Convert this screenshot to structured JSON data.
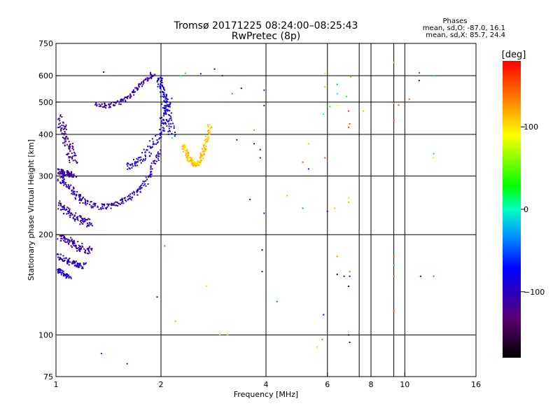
{
  "chart_data": {
    "type": "scatter",
    "title": "Tromsø 20171225 08:24:00–08:25:43",
    "subtitle": "RwPretec (8p)",
    "xlabel": "Frequency [MHz]",
    "ylabel": "Stationary phase Virtual Height [km]",
    "x_scale": "log",
    "y_scale": "log",
    "xlim": [
      1,
      16
    ],
    "ylim": [
      75,
      750
    ],
    "x_ticks": [
      1,
      2,
      4,
      6,
      8,
      10,
      16
    ],
    "x_tick_labels": [
      "1",
      "2",
      "4",
      "6",
      "8",
      "10",
      "16"
    ],
    "x_grid": [
      2,
      4,
      6,
      8,
      10
    ],
    "x_grid_extra": [
      7.4,
      9.3
    ],
    "y_ticks": [
      75,
      100,
      200,
      300,
      400,
      500,
      600,
      750
    ],
    "y_tick_labels": [
      "75",
      "100",
      "200",
      "300",
      "400",
      "500",
      "600",
      "750"
    ],
    "y_grid": [
      100,
      200,
      300,
      400,
      500,
      600
    ],
    "grid": true,
    "stats": {
      "heading": "Phases",
      "line1": "mean, sd,O: -87.0, 16.1",
      "line2": "mean, sd,X: 85.7, 24.4"
    },
    "colorbar": {
      "label": "[deg]",
      "range": [
        -180,
        180
      ],
      "ticks": [
        100,
        0,
        -100
      ],
      "tick_labels": [
        "100",
        "0",
        "−100"
      ]
    },
    "traces": [
      {
        "x": [
          1.0,
          1.05,
          1.1,
          1.15,
          1.2,
          1.3,
          1.4,
          1.5,
          1.6,
          1.7,
          1.8,
          1.9,
          1.97
        ],
        "y": [
          300,
          290,
          275,
          262,
          252,
          244,
          244,
          250,
          258,
          270,
          290,
          325,
          360
        ],
        "phase": -102,
        "spread": 4
      },
      {
        "x": [
          1.0,
          1.03,
          1.06,
          1.08,
          1.1,
          1.12
        ],
        "y": [
          460,
          430,
          400,
          375,
          350,
          330
        ],
        "phase": -118,
        "spread": 6
      },
      {
        "x": [
          1.0,
          1.03,
          1.06,
          1.09,
          1.12
        ],
        "y": [
          315,
          310,
          308,
          305,
          303
        ],
        "phase": -112,
        "spread": 4
      },
      {
        "x": [
          1.0,
          1.05,
          1.1,
          1.15,
          1.2,
          1.25
        ],
        "y": [
          250,
          240,
          232,
          225,
          220,
          217
        ],
        "phase": -108,
        "spread": 5
      },
      {
        "x": [
          1.0,
          1.05,
          1.1,
          1.15,
          1.2,
          1.25
        ],
        "y": [
          200,
          195,
          190,
          186,
          183,
          181
        ],
        "phase": -110,
        "spread": 6
      },
      {
        "x": [
          1.0,
          1.05,
          1.1,
          1.15,
          1.2
        ],
        "y": [
          175,
          170,
          166,
          163,
          162
        ],
        "phase": -95,
        "spread": 4
      },
      {
        "x": [
          1.0,
          1.03,
          1.06,
          1.09
        ],
        "y": [
          158,
          155,
          152,
          150
        ],
        "phase": -92,
        "spread": 3
      },
      {
        "x": [
          1.3,
          1.4,
          1.5,
          1.6,
          1.7,
          1.8,
          1.9
        ],
        "y": [
          495,
          490,
          500,
          520,
          550,
          585,
          615
        ],
        "phase": -108,
        "spread": 3
      },
      {
        "x": [
          1.6,
          1.7,
          1.8,
          1.9,
          2.0,
          2.05,
          2.1
        ],
        "y": [
          320,
          330,
          350,
          380,
          420,
          460,
          520
        ],
        "phase": -88,
        "spread": 5
      },
      {
        "x": [
          1.97,
          2.0,
          2.03,
          2.07,
          2.1,
          2.15
        ],
        "y": [
          600,
          560,
          520,
          480,
          440,
          400
        ],
        "phase": -85,
        "spread": 5
      },
      {
        "x": [
          2.3,
          2.35,
          2.4,
          2.45,
          2.5,
          2.55,
          2.6,
          2.65,
          2.7,
          2.75
        ],
        "y": [
          375,
          355,
          340,
          330,
          325,
          330,
          345,
          365,
          395,
          430
        ],
        "phase": 110,
        "spread": 3
      }
    ],
    "scatter": [
      {
        "x": 1.37,
        "y": 615,
        "phase": -100
      },
      {
        "x": 1.35,
        "y": 88,
        "phase": -60
      },
      {
        "x": 1.6,
        "y": 82,
        "phase": -100
      },
      {
        "x": 1.95,
        "y": 130,
        "phase": -110
      },
      {
        "x": 2.28,
        "y": 600,
        "phase": 10
      },
      {
        "x": 2.35,
        "y": 610,
        "phase": 30
      },
      {
        "x": 2.15,
        "y": 390,
        "phase": 10
      },
      {
        "x": 2.05,
        "y": 185,
        "phase": 150
      },
      {
        "x": 2.2,
        "y": 110,
        "phase": 60
      },
      {
        "x": 2.6,
        "y": 608,
        "phase": -95
      },
      {
        "x": 2.85,
        "y": 628,
        "phase": -70
      },
      {
        "x": 3.0,
        "y": 600,
        "phase": -130
      },
      {
        "x": 3.2,
        "y": 530,
        "phase": 150
      },
      {
        "x": 3.4,
        "y": 550,
        "phase": -150
      },
      {
        "x": 3.3,
        "y": 385,
        "phase": -95
      },
      {
        "x": 3.7,
        "y": 412,
        "phase": 40
      },
      {
        "x": 3.7,
        "y": 375,
        "phase": -150
      },
      {
        "x": 3.85,
        "y": 360,
        "phase": -80
      },
      {
        "x": 3.85,
        "y": 340,
        "phase": -90
      },
      {
        "x": 3.95,
        "y": 488,
        "phase": -120
      },
      {
        "x": 3.95,
        "y": 543,
        "phase": -60
      },
      {
        "x": 3.6,
        "y": 255,
        "phase": -120
      },
      {
        "x": 3.95,
        "y": 232,
        "phase": -70
      },
      {
        "x": 3.9,
        "y": 180,
        "phase": -150
      },
      {
        "x": 3.9,
        "y": 155,
        "phase": -150
      },
      {
        "x": 2.7,
        "y": 140,
        "phase": 100
      },
      {
        "x": 2.95,
        "y": 100,
        "phase": 50
      },
      {
        "x": 3.1,
        "y": 100,
        "phase": 60
      },
      {
        "x": 4.3,
        "y": 126,
        "phase": -40
      },
      {
        "x": 4.6,
        "y": 262,
        "phase": 120
      },
      {
        "x": 5.1,
        "y": 240,
        "phase": -30
      },
      {
        "x": 5.1,
        "y": 330,
        "phase": 150
      },
      {
        "x": 5.3,
        "y": 315,
        "phase": -60
      },
      {
        "x": 5.3,
        "y": 375,
        "phase": 110
      },
      {
        "x": 5.6,
        "y": 92,
        "phase": 100
      },
      {
        "x": 5.8,
        "y": 97,
        "phase": 150
      },
      {
        "x": 5.85,
        "y": 460,
        "phase": 0
      },
      {
        "x": 5.9,
        "y": 610,
        "phase": 100
      },
      {
        "x": 5.9,
        "y": 555,
        "phase": 60
      },
      {
        "x": 6.0,
        "y": 235,
        "phase": -140
      },
      {
        "x": 6.1,
        "y": 485,
        "phase": 40
      },
      {
        "x": 5.9,
        "y": 340,
        "phase": 150
      },
      {
        "x": 5.85,
        "y": 115,
        "phase": -80
      },
      {
        "x": 6.4,
        "y": 565,
        "phase": -30
      },
      {
        "x": 6.4,
        "y": 530,
        "phase": 0
      },
      {
        "x": 6.4,
        "y": 490,
        "phase": 90
      },
      {
        "x": 6.3,
        "y": 240,
        "phase": 110
      },
      {
        "x": 6.4,
        "y": 172,
        "phase": 130
      },
      {
        "x": 6.4,
        "y": 152,
        "phase": -100
      },
      {
        "x": 6.7,
        "y": 150,
        "phase": -120
      },
      {
        "x": 6.95,
        "y": 150,
        "phase": -140
      },
      {
        "x": 6.9,
        "y": 140,
        "phase": -70
      },
      {
        "x": 6.95,
        "y": 155,
        "phase": 140
      },
      {
        "x": 6.9,
        "y": 100,
        "phase": -150
      },
      {
        "x": 6.95,
        "y": 95,
        "phase": -150
      },
      {
        "x": 6.9,
        "y": 258,
        "phase": 80
      },
      {
        "x": 6.9,
        "y": 250,
        "phase": 110
      },
      {
        "x": 6.9,
        "y": 420,
        "phase": 150
      },
      {
        "x": 6.95,
        "y": 430,
        "phase": 150
      },
      {
        "x": 6.9,
        "y": 470,
        "phase": 160
      },
      {
        "x": 7.0,
        "y": 595,
        "phase": 120
      },
      {
        "x": 6.8,
        "y": 520,
        "phase": 30
      },
      {
        "x": 7.6,
        "y": 470,
        "phase": 60
      },
      {
        "x": 9.3,
        "y": 657,
        "phase": 60
      },
      {
        "x": 9.3,
        "y": 496,
        "phase": 130
      },
      {
        "x": 9.6,
        "y": 490,
        "phase": 150
      },
      {
        "x": 9.3,
        "y": 440,
        "phase": 160
      },
      {
        "x": 9.3,
        "y": 172,
        "phase": 150
      },
      {
        "x": 9.3,
        "y": 162,
        "phase": -20
      },
      {
        "x": 9.3,
        "y": 150,
        "phase": 140
      },
      {
        "x": 9.3,
        "y": 118,
        "phase": 150
      },
      {
        "x": 10.3,
        "y": 510,
        "phase": 150
      },
      {
        "x": 11.0,
        "y": 612,
        "phase": 170
      },
      {
        "x": 11.0,
        "y": 580,
        "phase": -130
      },
      {
        "x": 11.1,
        "y": 150,
        "phase": -80
      },
      {
        "x": 12.1,
        "y": 600,
        "phase": -20
      },
      {
        "x": 12.1,
        "y": 350,
        "phase": -20
      },
      {
        "x": 12.1,
        "y": 340,
        "phase": 100
      },
      {
        "x": 12.1,
        "y": 150,
        "phase": 160
      }
    ]
  }
}
